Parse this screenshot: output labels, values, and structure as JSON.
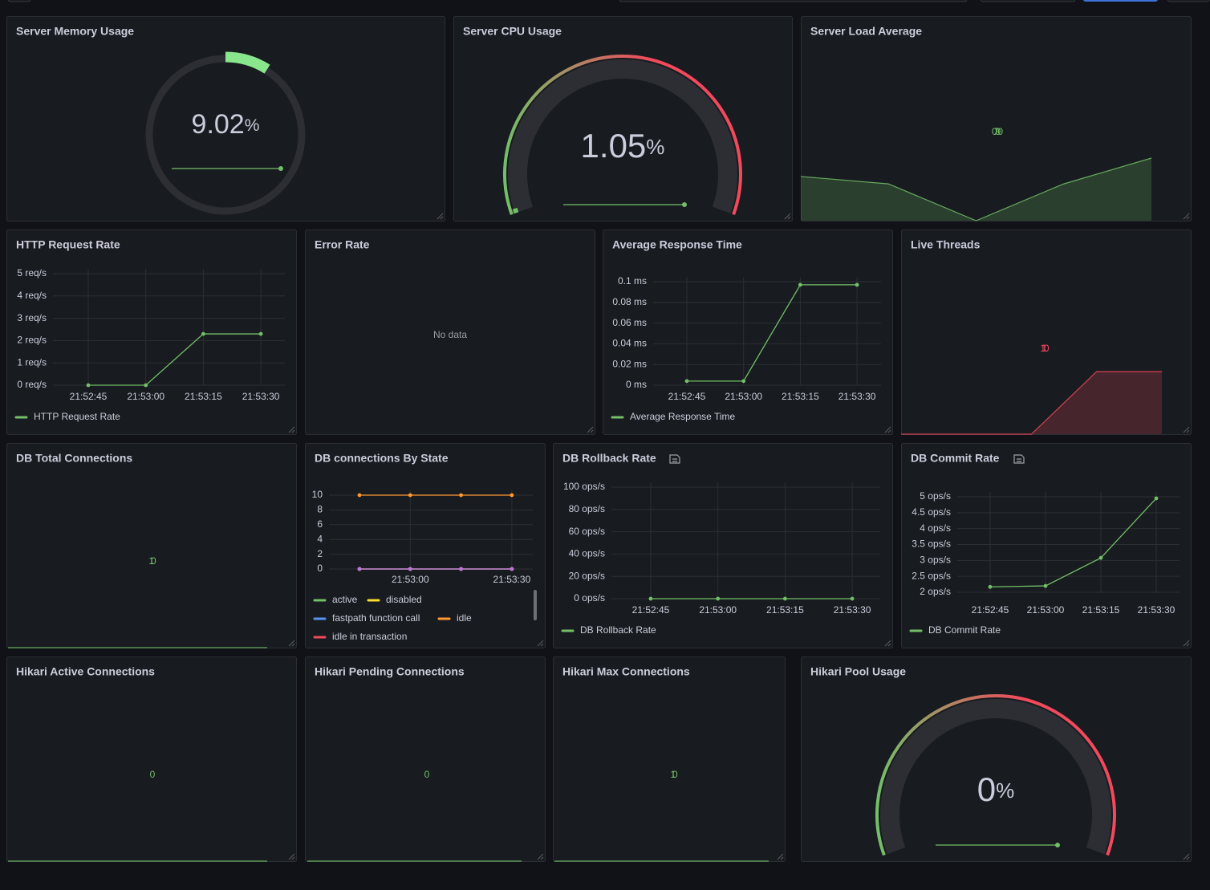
{
  "panels": [
    {
      "title": "Server Memory Usage",
      "type": "gauge",
      "value": 9.02,
      "unit": "%",
      "min": 0,
      "max": 100,
      "color": "#8ae68d",
      "sparkline": [
        9.02,
        9.02,
        9.02,
        9.02
      ]
    },
    {
      "title": "Server CPU Usage",
      "type": "gauge",
      "value": 1.05,
      "unit": "%",
      "min": 0,
      "max": 100,
      "color": "#73bf69",
      "threshold_colors": [
        "#73bf69",
        "#f2495c"
      ],
      "sparkline": [
        1.05,
        1.05,
        1.05,
        1.05
      ]
    },
    {
      "title": "Server Load Average",
      "type": "stat",
      "value": 0.79,
      "value_label": "0.790",
      "color": "#73bf69",
      "sparkline": [
        0.74,
        0.72,
        0.62,
        0.72,
        0.79
      ]
    },
    {
      "title": "HTTP Request Rate",
      "type": "line",
      "x": [
        "21:52:45",
        "21:53:00",
        "21:53:15",
        "21:53:30"
      ],
      "series": [
        {
          "name": "HTTP Request Rate",
          "color": "#73bf69",
          "values": [
            0,
            0,
            2.3,
            2.3
          ]
        }
      ],
      "ylim": [
        0,
        5
      ],
      "yticks": [
        {
          "value": 0,
          "label": "0 req/s"
        },
        {
          "value": 1,
          "label": "1 req/s"
        },
        {
          "value": 2,
          "label": "2 req/s"
        },
        {
          "value": 3,
          "label": "3 req/s"
        },
        {
          "value": 4,
          "label": "4 req/s"
        },
        {
          "value": 5,
          "label": "5 req/s"
        }
      ],
      "grid": true,
      "legend": "bottom"
    },
    {
      "title": "Error Rate",
      "type": "text",
      "message": "No data"
    },
    {
      "title": "Average Response Time",
      "type": "line",
      "x": [
        "21:52:45",
        "21:53:00",
        "21:53:15",
        "21:53:30"
      ],
      "series": [
        {
          "name": "Average Response Time",
          "color": "#73bf69",
          "values": [
            0.004,
            0.004,
            0.097,
            0.097
          ]
        }
      ],
      "ylim": [
        0,
        0.1
      ],
      "yticks": [
        {
          "value": 0,
          "label": "0 ms"
        },
        {
          "value": 0.02,
          "label": "0.02 ms"
        },
        {
          "value": 0.04,
          "label": "0.04 ms"
        },
        {
          "value": 0.06,
          "label": "0.06 ms"
        },
        {
          "value": 0.08,
          "label": "0.08 ms"
        },
        {
          "value": 0.1,
          "label": "0.1 ms"
        }
      ],
      "grid": true,
      "legend": "bottom"
    },
    {
      "title": "Live Threads",
      "type": "stat",
      "value": 110,
      "color": "#f2495c",
      "sparkline": [
        108,
        108,
        108,
        110,
        110
      ]
    },
    {
      "title": "DB Total Connections",
      "type": "stat",
      "value": 10,
      "color": "#73bf69",
      "sparkline": [
        10,
        10,
        10,
        10
      ]
    },
    {
      "title": "DB connections By State",
      "type": "line",
      "x": [
        null,
        "21:53:00",
        null,
        "21:53:30"
      ],
      "series": [
        {
          "name": "active",
          "color": "#73bf69",
          "values": [
            0,
            0,
            0,
            0
          ]
        },
        {
          "name": "disabled",
          "color": "#fade2a",
          "values": [
            0,
            0,
            0,
            0
          ]
        },
        {
          "name": "fastpath function call",
          "color": "#5794f2",
          "values": [
            0,
            0,
            0,
            0
          ]
        },
        {
          "name": "idle",
          "color": "#ff9830",
          "values": [
            10,
            10,
            10,
            10
          ]
        },
        {
          "name": "idle in transaction",
          "color": "#f2495c",
          "values": [
            0,
            0,
            0,
            0
          ]
        },
        {
          "color": "#b877d9",
          "values": [
            0,
            0,
            0,
            0
          ]
        }
      ],
      "ylim": [
        0,
        10
      ],
      "yticks": [
        0,
        2,
        4,
        6,
        8,
        10
      ],
      "grid": true,
      "legend": "bottom"
    },
    {
      "title": "DB Rollback Rate",
      "type": "line",
      "x": [
        "21:52:45",
        "21:53:00",
        "21:53:15",
        "21:53:30"
      ],
      "series": [
        {
          "name": "DB Rollback Rate",
          "color": "#73bf69",
          "values": [
            0,
            0,
            0,
            0
          ]
        }
      ],
      "ylim": [
        0,
        100
      ],
      "yticks": [
        {
          "value": 0,
          "label": "0 ops/s"
        },
        {
          "value": 20,
          "label": "20 ops/s"
        },
        {
          "value": 40,
          "label": "40 ops/s"
        },
        {
          "value": 60,
          "label": "60 ops/s"
        },
        {
          "value": 80,
          "label": "80 ops/s"
        },
        {
          "value": 100,
          "label": "100 ops/s"
        }
      ],
      "grid": true,
      "legend": "bottom"
    },
    {
      "title": "DB Commit Rate",
      "type": "line",
      "x": [
        "21:52:45",
        "21:53:00",
        "21:53:15",
        "21:53:30"
      ],
      "series": [
        {
          "name": "DB Commit Rate",
          "color": "#73bf69",
          "values": [
            2.17,
            2.2,
            3.08,
            4.95
          ]
        }
      ],
      "ylim": [
        2,
        5
      ],
      "yticks": [
        {
          "value": 2,
          "label": "2 ops/s"
        },
        {
          "value": 2.5,
          "label": "2.5 ops/s"
        },
        {
          "value": 3,
          "label": "3 ops/s"
        },
        {
          "value": 3.5,
          "label": "3.5 ops/s"
        },
        {
          "value": 4,
          "label": "4 ops/s"
        },
        {
          "value": 4.5,
          "label": "4.5 ops/s"
        },
        {
          "value": 5,
          "label": "5 ops/s"
        }
      ],
      "grid": true,
      "legend": "bottom"
    },
    {
      "title": "Hikari Active Connections",
      "type": "stat",
      "value": 0,
      "color": "#73bf69",
      "sparkline": [
        0,
        0,
        0,
        0
      ]
    },
    {
      "title": "Hikari Pending Connections",
      "type": "stat",
      "value": 0,
      "color": "#73bf69",
      "sparkline": [
        0,
        0,
        0,
        0
      ]
    },
    {
      "title": "Hikari Max Connections",
      "type": "stat",
      "value": 10,
      "color": "#73bf69",
      "sparkline": [
        10,
        10,
        10,
        10
      ]
    },
    {
      "title": "Hikari Pool Usage",
      "type": "gauge",
      "value": 0,
      "unit": "%",
      "min": 0,
      "max": 100,
      "color": "#73bf69",
      "threshold_colors": [
        "#73bf69",
        "#f2495c"
      ],
      "sparkline": [
        0,
        0,
        0,
        0
      ]
    }
  ]
}
